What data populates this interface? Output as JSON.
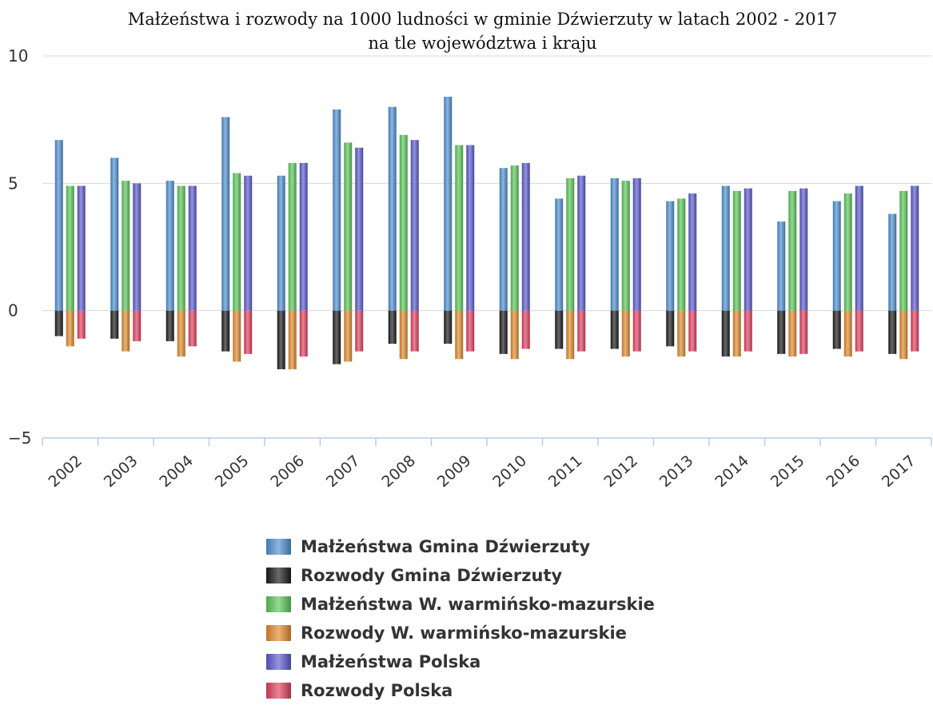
{
  "chart_data": {
    "type": "bar",
    "title": "Małżeństwa i rozwody na 1000 ludności w gminie Dźwierzuty w latach 2002 - 2017",
    "subtitle": "na tle województwa i kraju",
    "categories": [
      "2002",
      "2003",
      "2004",
      "2005",
      "2006",
      "2007",
      "2008",
      "2009",
      "2010",
      "2011",
      "2012",
      "2013",
      "2014",
      "2015",
      "2016",
      "2017"
    ],
    "ylim": [
      -5,
      10
    ],
    "yticks": [
      -5,
      0,
      5,
      10
    ],
    "grid": true,
    "legend_position": "bottom",
    "series": [
      {
        "name": "Małżeństwa Gmina Dźwierzuty",
        "color": "#4f8fcf",
        "values": [
          6.7,
          6.0,
          5.1,
          7.6,
          5.3,
          7.9,
          8.0,
          8.4,
          5.6,
          4.4,
          5.2,
          4.3,
          4.9,
          3.5,
          4.3,
          3.8
        ]
      },
      {
        "name": "Rozwody Gmina Dźwierzuty",
        "color": "#1a1a1a",
        "values": [
          -1.0,
          -1.1,
          -1.2,
          -1.6,
          -2.3,
          -2.1,
          -1.3,
          -1.3,
          -1.7,
          -1.5,
          -1.5,
          -1.4,
          -1.8,
          -1.7,
          -1.5,
          -1.7
        ]
      },
      {
        "name": "Małżeństwa W. warmińsko-mazurskie",
        "color": "#5cc65c",
        "values": [
          4.9,
          5.1,
          4.9,
          5.4,
          5.8,
          6.6,
          6.9,
          6.5,
          5.7,
          5.2,
          5.1,
          4.4,
          4.7,
          4.7,
          4.6,
          4.7
        ]
      },
      {
        "name": "Rozwody W. warmińsko-mazurskie",
        "color": "#e08a2e",
        "values": [
          -1.4,
          -1.6,
          -1.8,
          -2.0,
          -2.3,
          -2.0,
          -1.9,
          -1.9,
          -1.9,
          -1.9,
          -1.8,
          -1.8,
          -1.8,
          -1.8,
          -1.8,
          -1.9
        ]
      },
      {
        "name": "Małżeństwa Polska",
        "color": "#5b5bcc",
        "values": [
          4.9,
          5.0,
          4.9,
          5.3,
          5.8,
          6.4,
          6.7,
          6.5,
          5.8,
          5.3,
          5.2,
          4.6,
          4.8,
          4.8,
          4.9,
          4.9
        ]
      },
      {
        "name": "Rozwody Polska",
        "color": "#e0405f",
        "values": [
          -1.1,
          -1.2,
          -1.4,
          -1.7,
          -1.8,
          -1.6,
          -1.6,
          -1.6,
          -1.5,
          -1.6,
          -1.6,
          -1.6,
          -1.6,
          -1.7,
          -1.6,
          -1.6
        ]
      }
    ]
  }
}
